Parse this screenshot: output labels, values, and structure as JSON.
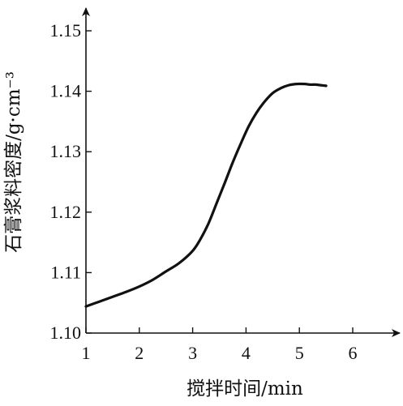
{
  "chart_data": {
    "type": "line",
    "title": "",
    "xlabel": "搅拌时间/min",
    "ylabel": "石膏浆料密度/g·cm⁻³",
    "xlim": [
      1,
      6.9
    ],
    "ylim": [
      1.1,
      1.155
    ],
    "x_ticks": [
      1,
      2,
      3,
      4,
      5,
      6
    ],
    "x_tick_labels": [
      "1",
      "2",
      "3",
      "4",
      "5",
      "6"
    ],
    "y_ticks": [
      1.1,
      1.11,
      1.12,
      1.13,
      1.14,
      1.15
    ],
    "y_tick_labels": [
      "1.10",
      "1.11",
      "1.12",
      "1.13",
      "1.14",
      "1.15"
    ],
    "grid": false,
    "legend": "none",
    "line_color": "#111111",
    "series": [
      {
        "x": [
          1.0,
          1.25,
          1.5,
          1.75,
          2.0,
          2.25,
          2.5,
          2.75,
          3.0,
          3.15,
          3.3,
          3.45,
          3.6,
          3.75,
          3.9,
          4.05,
          4.2,
          4.35,
          4.5,
          4.65,
          4.8,
          4.95,
          5.1,
          5.2,
          5.3,
          5.4,
          5.5
        ],
        "y": [
          1.1044,
          1.1052,
          1.106,
          1.1068,
          1.1077,
          1.1088,
          1.1102,
          1.1116,
          1.1136,
          1.1156,
          1.1182,
          1.1215,
          1.1248,
          1.1282,
          1.1313,
          1.1342,
          1.1365,
          1.1383,
          1.1397,
          1.1405,
          1.141,
          1.1412,
          1.1412,
          1.1411,
          1.1411,
          1.141,
          1.1409
        ]
      }
    ]
  }
}
